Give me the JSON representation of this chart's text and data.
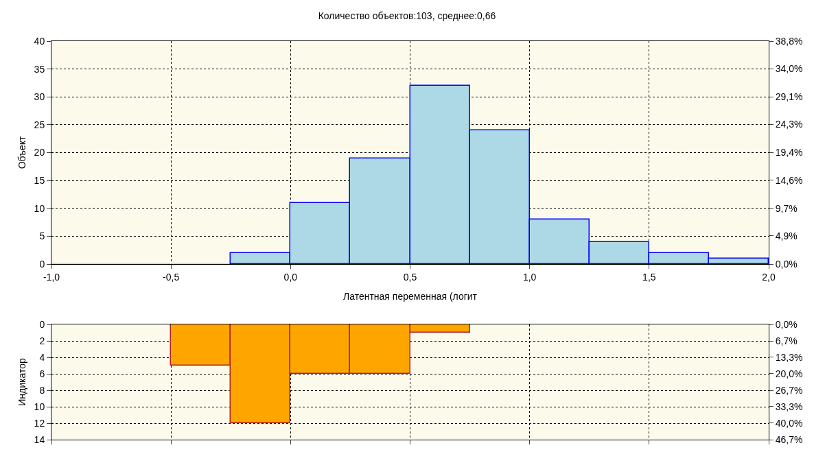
{
  "chart_data": [
    {
      "type": "histogram",
      "title": "Количество объектов:103, среднее:0,66",
      "xlabel": "Латентная переменная (логит",
      "ylabel": "Объект",
      "bins": [
        -1,
        -0.75,
        -0.5,
        -0.25,
        0,
        0.25,
        0.5,
        0.75,
        1,
        1.25,
        1.5,
        1.75,
        2
      ],
      "values": [
        0,
        0,
        0,
        2,
        11,
        19,
        32,
        24,
        8,
        4,
        2,
        1
      ],
      "color": "#add8e6",
      "xlim": [
        -1,
        2
      ],
      "xticks": [
        {
          "value": -1,
          "label": "-1,0"
        },
        {
          "value": -0.5,
          "label": "-0,5"
        },
        {
          "value": 0,
          "label": "0,0"
        },
        {
          "value": 0.5,
          "label": "0,5"
        },
        {
          "value": 1,
          "label": "1,0"
        },
        {
          "value": 1.5,
          "label": "1,5"
        },
        {
          "value": 2,
          "label": "2,0"
        }
      ],
      "ylim": [
        0,
        40
      ],
      "yticks": [
        0,
        5,
        10,
        15,
        20,
        25,
        30,
        35,
        40
      ],
      "y2lim": [
        0,
        38.8
      ],
      "y2ticks": [
        {
          "value": 0,
          "label": "0,0%"
        },
        {
          "value": 4.9,
          "label": "4,9%"
        },
        {
          "value": 9.7,
          "label": "9,7%"
        },
        {
          "value": 14.6,
          "label": "14,6%"
        },
        {
          "value": 19.4,
          "label": "19,4%"
        },
        {
          "value": 24.3,
          "label": "24,3%"
        },
        {
          "value": 29.1,
          "label": "29,1%"
        },
        {
          "value": 34.0,
          "label": "34,0%"
        },
        {
          "value": 38.8,
          "label": "38,8%"
        }
      ],
      "grid": true
    },
    {
      "type": "histogram",
      "ylabel": "Индикатор",
      "bins": [
        -0.5,
        -0.25,
        0,
        0.25,
        0.5,
        0.75
      ],
      "values": [
        5,
        12,
        6,
        6,
        1
      ],
      "color": "#ffa500",
      "xlim": [
        -1,
        2
      ],
      "xticks": [
        {
          "value": -1,
          "label": null
        },
        {
          "value": -0.5,
          "label": null
        },
        {
          "value": 0,
          "label": null
        },
        {
          "value": 0.5,
          "label": null
        },
        {
          "value": 1,
          "label": null
        },
        {
          "value": 1.5,
          "label": null
        },
        {
          "value": 2,
          "label": null
        }
      ],
      "ylim": [
        14,
        0
      ],
      "yticks": [
        0,
        2,
        4,
        6,
        8,
        10,
        12,
        14
      ],
      "y2lim": [
        46.7,
        0
      ],
      "y2ticks": [
        {
          "value": 0,
          "label": "0,0%"
        },
        {
          "value": 6.7,
          "label": "6,7%"
        },
        {
          "value": 13.3,
          "label": "13,3%"
        },
        {
          "value": 20.0,
          "label": "20,0%"
        },
        {
          "value": 26.7,
          "label": "26,7%"
        },
        {
          "value": 33.3,
          "label": "33,3%"
        },
        {
          "value": 40.0,
          "label": "40,0%"
        },
        {
          "value": 46.7,
          "label": "46,7%"
        }
      ],
      "grid": true,
      "tick_labels": "y"
    }
  ]
}
